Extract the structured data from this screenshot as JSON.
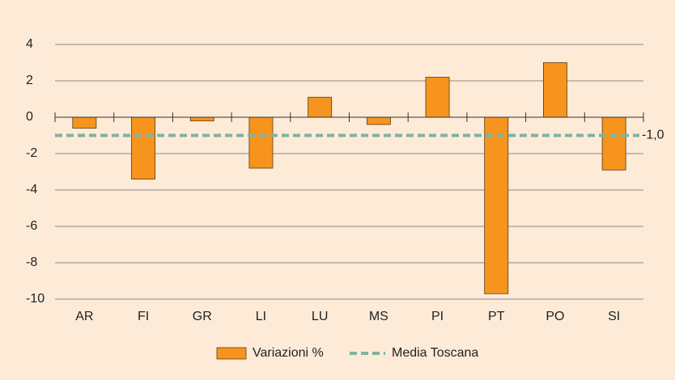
{
  "chart_data": {
    "type": "bar",
    "categories": [
      "AR",
      "FI",
      "GR",
      "LI",
      "LU",
      "MS",
      "PI",
      "PT",
      "PO",
      "SI"
    ],
    "series": [
      {
        "name": "Variazioni %",
        "color": "#f7941d",
        "values": [
          -0.6,
          -3.4,
          -0.2,
          -2.8,
          1.1,
          -0.4,
          2.2,
          -9.7,
          3.0,
          -2.9
        ]
      }
    ],
    "reference": {
      "name": "Media Toscana",
      "value": -1,
      "label": "-1,0",
      "color": "#7fb3a0"
    },
    "ylim": [
      -10,
      4
    ],
    "yticks": [
      4,
      2,
      0,
      -2,
      -4,
      -6,
      -8,
      -10
    ],
    "grid": true
  }
}
